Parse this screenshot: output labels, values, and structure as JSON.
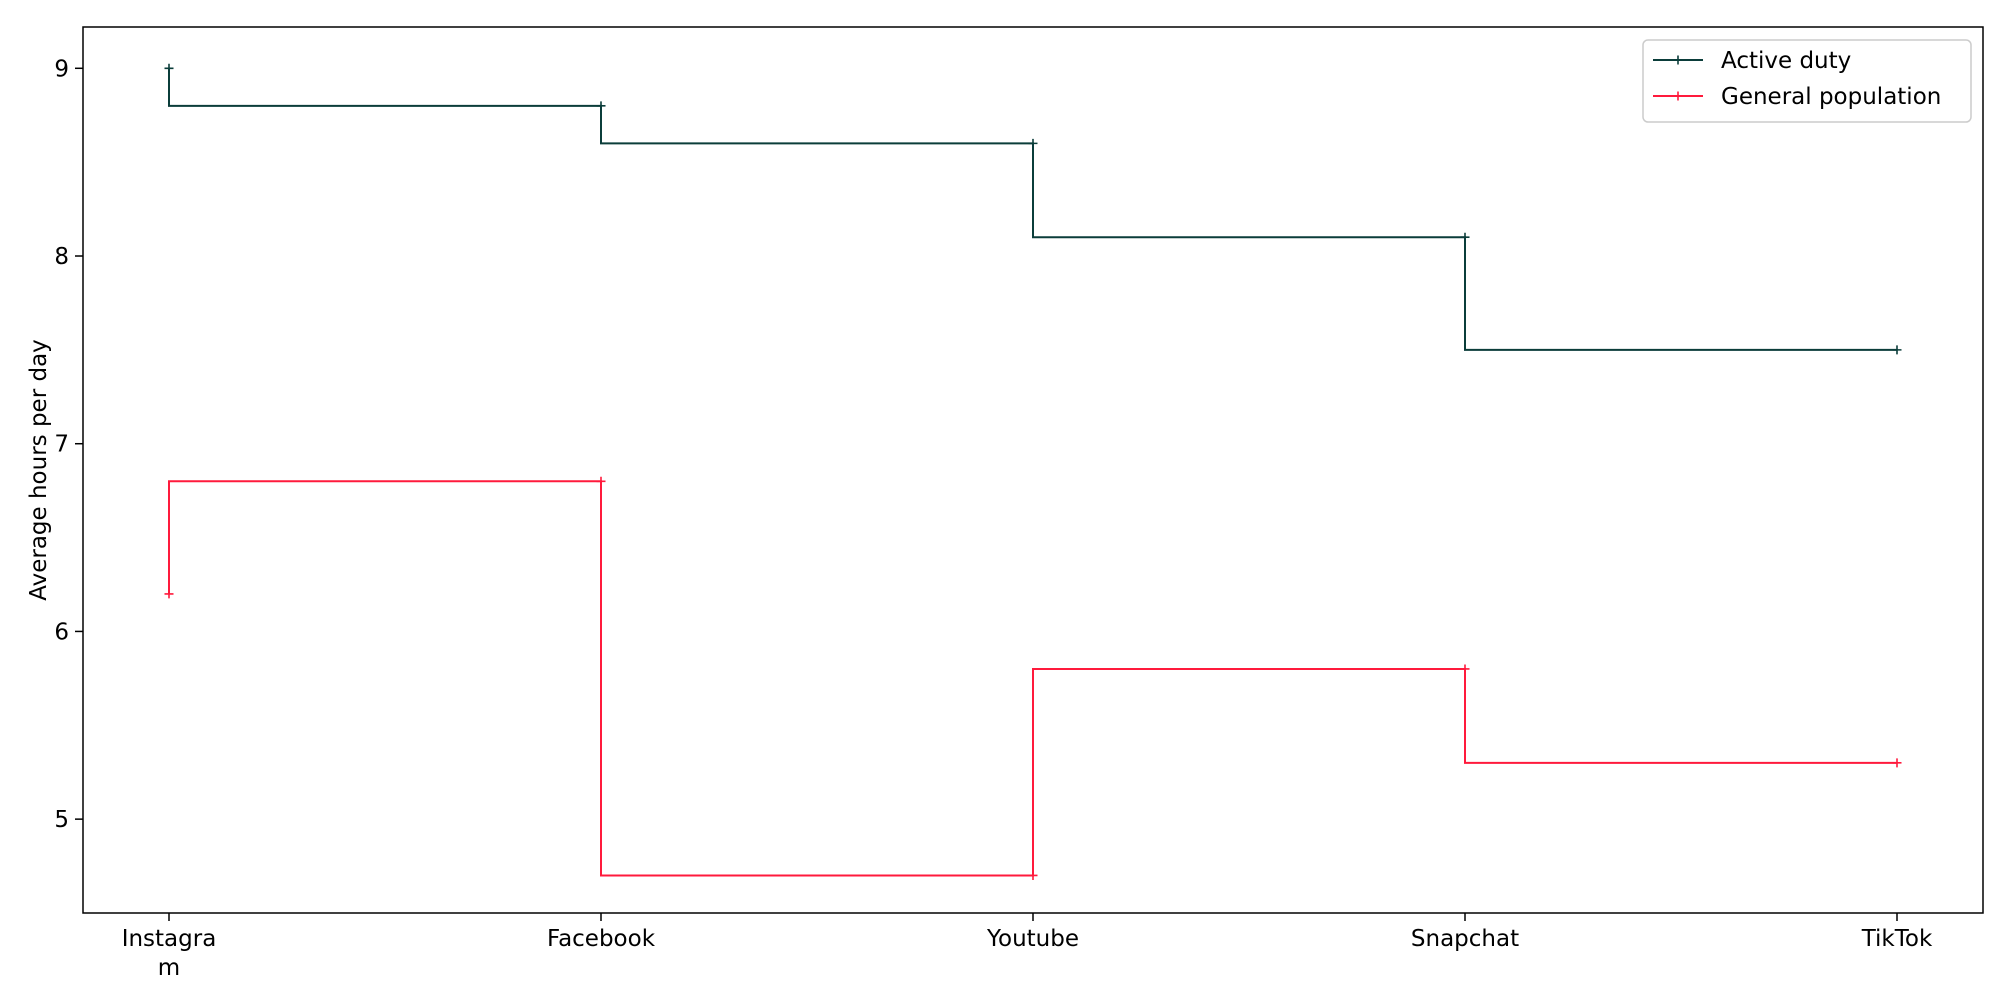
{
  "chart_data": {
    "type": "line",
    "drawstyle": "steps-pre",
    "title": "",
    "xlabel": "",
    "ylabel": "Average hours per day",
    "categories": [
      "Instagram",
      "Facebook",
      "Youtube",
      "Snapchat",
      "TikTok"
    ],
    "ylim": [
      4.5,
      9.22
    ],
    "yticks": [
      5,
      6,
      7,
      8,
      9
    ],
    "grid": false,
    "legend_position": "top-right",
    "series": [
      {
        "name": "Active duty",
        "color": "#0b3d3a",
        "marker": "+",
        "values": [
          9.0,
          8.8,
          8.6,
          8.1,
          7.5
        ]
      },
      {
        "name": "General population",
        "color": "#ff1a3c",
        "marker": "+",
        "values": [
          6.2,
          6.8,
          4.7,
          5.8,
          5.3
        ]
      }
    ]
  }
}
